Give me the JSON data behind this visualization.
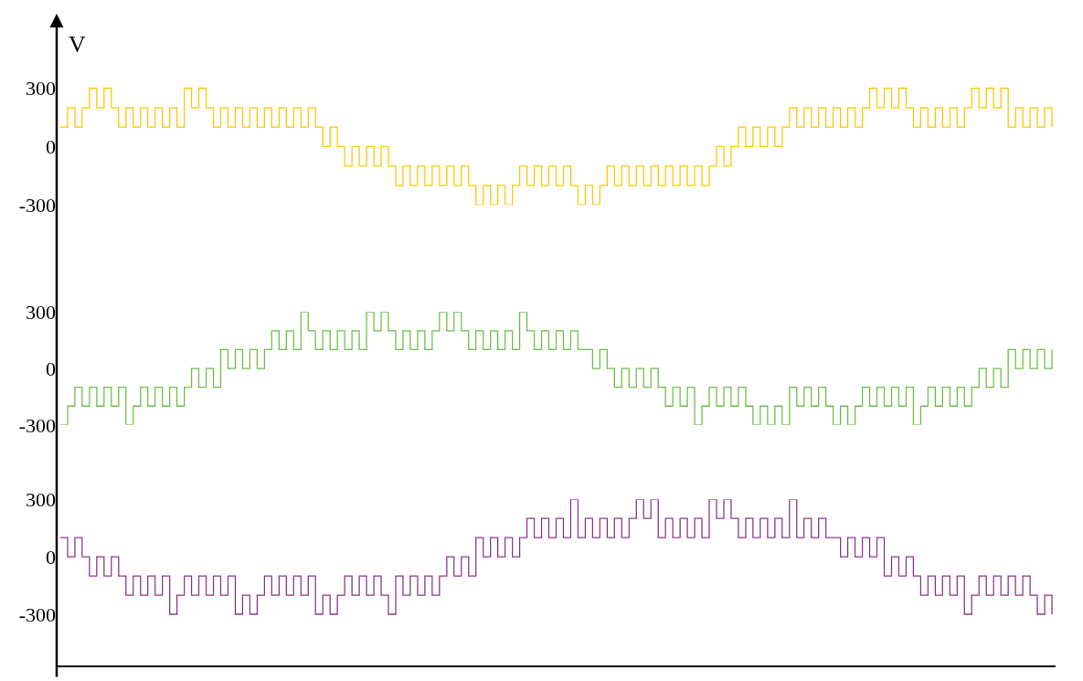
{
  "chart_data": [
    {
      "type": "step",
      "ylabel": "V",
      "color": "#ffc800",
      "ylim": [
        -300,
        683
      ],
      "yticks": [
        -300,
        0,
        300
      ],
      "tick_labels": "y",
      "categories": [
        null,
        null,
        null,
        null,
        null,
        null,
        null,
        null,
        null,
        null,
        null,
        null,
        null,
        null,
        null,
        null,
        null,
        null,
        null,
        null,
        null,
        null,
        null,
        null,
        null,
        null,
        null,
        null,
        null,
        null,
        null,
        null,
        null,
        null,
        null,
        null,
        null,
        null,
        null,
        null,
        null,
        null,
        null,
        null,
        null,
        null,
        null,
        null,
        null,
        null,
        null,
        null,
        null,
        null,
        null,
        null,
        null,
        null,
        null,
        null,
        null,
        null,
        null,
        null,
        null,
        null,
        null,
        null,
        null,
        null,
        null,
        null,
        null,
        null,
        null,
        null,
        null,
        null,
        null,
        null,
        null,
        null,
        null,
        null,
        null,
        null,
        null,
        null,
        null,
        null,
        null,
        null,
        null,
        null,
        null,
        null,
        null,
        null,
        null,
        null,
        null,
        null,
        null,
        null,
        null,
        null,
        null,
        null,
        null,
        null,
        null,
        null,
        null,
        null,
        null,
        null,
        null,
        null,
        null,
        null,
        null,
        null,
        null,
        null,
        null,
        null,
        null,
        null,
        null,
        null,
        null,
        null,
        null,
        null,
        null,
        null,
        null
      ],
      "values": [
        100,
        200,
        100,
        200,
        300,
        200,
        300,
        200,
        100,
        200,
        100,
        200,
        100,
        200,
        100,
        200,
        100,
        300,
        200,
        300,
        200,
        100,
        200,
        100,
        200,
        100,
        200,
        100,
        200,
        100,
        200,
        100,
        200,
        100,
        200,
        100,
        0,
        100,
        0,
        -100,
        0,
        -100,
        0,
        -100,
        0,
        -100,
        -200,
        -100,
        -200,
        -100,
        -200,
        -100,
        -200,
        -100,
        -200,
        -100,
        -200,
        -300,
        -200,
        -300,
        -200,
        -300,
        -200,
        -100,
        -200,
        -100,
        -200,
        -100,
        -200,
        -100,
        -200,
        -300,
        -200,
        -300,
        -200,
        -100,
        -200,
        -100,
        -200,
        -100,
        -200,
        -100,
        -200,
        -100,
        -200,
        -100,
        -200,
        -100,
        -200,
        -100,
        0,
        -100,
        0,
        100,
        0,
        100,
        0,
        100,
        0,
        100,
        200,
        100,
        200,
        100,
        200,
        100,
        200,
        100,
        200,
        100,
        200,
        300,
        200,
        300,
        200,
        300,
        200,
        100,
        200,
        100,
        200,
        100,
        200,
        100,
        200,
        300,
        200,
        300,
        200,
        300,
        100,
        200,
        100,
        200,
        100,
        200,
        100
      ]
    },
    {
      "type": "step",
      "color": "#6cc04a",
      "ylim": [
        -300,
        300
      ],
      "yticks": [
        -300,
        0,
        300
      ],
      "tick_labels": "y",
      "categories": [
        null,
        null,
        null,
        null,
        null,
        null,
        null,
        null,
        null,
        null,
        null,
        null,
        null,
        null,
        null,
        null,
        null,
        null,
        null,
        null,
        null,
        null,
        null,
        null,
        null,
        null,
        null,
        null,
        null,
        null,
        null,
        null,
        null,
        null,
        null,
        null,
        null,
        null,
        null,
        null,
        null,
        null,
        null,
        null,
        null,
        null,
        null,
        null,
        null,
        null,
        null,
        null,
        null,
        null,
        null,
        null,
        null,
        null,
        null,
        null,
        null,
        null,
        null,
        null,
        null,
        null,
        null,
        null,
        null,
        null,
        null,
        null,
        null,
        null,
        null,
        null,
        null,
        null,
        null,
        null,
        null,
        null,
        null,
        null,
        null,
        null,
        null,
        null,
        null,
        null,
        null,
        null,
        null,
        null,
        null,
        null,
        null,
        null,
        null,
        null,
        null,
        null,
        null,
        null,
        null,
        null,
        null,
        null,
        null,
        null,
        null,
        null,
        null,
        null,
        null,
        null,
        null,
        null,
        null,
        null,
        null,
        null,
        null,
        null,
        null,
        null,
        null,
        null,
        null,
        null,
        null,
        null,
        null,
        null,
        null,
        null,
        null
      ],
      "values": [
        -300,
        -200,
        -100,
        -200,
        -100,
        -200,
        -100,
        -200,
        -100,
        -300,
        -200,
        -100,
        -200,
        -100,
        -200,
        -100,
        -200,
        -100,
        0,
        -100,
        0,
        -100,
        100,
        0,
        100,
        0,
        100,
        0,
        100,
        200,
        100,
        200,
        100,
        300,
        200,
        100,
        200,
        100,
        200,
        100,
        200,
        100,
        300,
        200,
        300,
        200,
        100,
        200,
        100,
        200,
        100,
        200,
        300,
        200,
        300,
        200,
        100,
        200,
        100,
        200,
        100,
        200,
        100,
        300,
        200,
        100,
        200,
        100,
        200,
        100,
        200,
        100,
        100,
        0,
        100,
        0,
        -100,
        0,
        -100,
        0,
        -100,
        0,
        -100,
        -200,
        -100,
        -200,
        -100,
        -300,
        -200,
        -100,
        -200,
        -100,
        -200,
        -100,
        -200,
        -300,
        -200,
        -300,
        -200,
        -300,
        -100,
        -200,
        -100,
        -200,
        -100,
        -200,
        -300,
        -200,
        -300,
        -200,
        -100,
        -200,
        -100,
        -200,
        -100,
        -200,
        -100,
        -300,
        -200,
        -100,
        -200,
        -100,
        -200,
        -100,
        -200,
        -100,
        0,
        -100,
        0,
        -100,
        100,
        0,
        100,
        0,
        100,
        0,
        100
      ]
    },
    {
      "type": "step",
      "color": "#8b3a8b",
      "ylim": [
        -572,
        300
      ],
      "yticks": [
        -300,
        0,
        300
      ],
      "tick_labels": "y",
      "categories": [
        null,
        null,
        null,
        null,
        null,
        null,
        null,
        null,
        null,
        null,
        null,
        null,
        null,
        null,
        null,
        null,
        null,
        null,
        null,
        null,
        null,
        null,
        null,
        null,
        null,
        null,
        null,
        null,
        null,
        null,
        null,
        null,
        null,
        null,
        null,
        null,
        null,
        null,
        null,
        null,
        null,
        null,
        null,
        null,
        null,
        null,
        null,
        null,
        null,
        null,
        null,
        null,
        null,
        null,
        null,
        null,
        null,
        null,
        null,
        null,
        null,
        null,
        null,
        null,
        null,
        null,
        null,
        null,
        null,
        null,
        null,
        null,
        null,
        null,
        null,
        null,
        null,
        null,
        null,
        null,
        null,
        null,
        null,
        null,
        null,
        null,
        null,
        null,
        null,
        null,
        null,
        null,
        null,
        null,
        null,
        null,
        null,
        null,
        null,
        null,
        null,
        null,
        null,
        null,
        null,
        null,
        null,
        null,
        null,
        null,
        null,
        null,
        null,
        null,
        null,
        null,
        null,
        null,
        null,
        null,
        null,
        null,
        null,
        null,
        null,
        null,
        null,
        null,
        null,
        null,
        null,
        null,
        null,
        null,
        null,
        null,
        null
      ],
      "values": [
        100,
        0,
        100,
        0,
        -100,
        0,
        -100,
        0,
        -100,
        -200,
        -100,
        -200,
        -100,
        -200,
        -100,
        -300,
        -200,
        -100,
        -200,
        -100,
        -200,
        -100,
        -200,
        -100,
        -300,
        -200,
        -300,
        -200,
        -100,
        -200,
        -100,
        -200,
        -100,
        -200,
        -100,
        -300,
        -200,
        -300,
        -200,
        -100,
        -200,
        -100,
        -200,
        -100,
        -200,
        -300,
        -100,
        -200,
        -100,
        -200,
        -100,
        -200,
        -100,
        0,
        -100,
        0,
        -100,
        100,
        0,
        100,
        0,
        100,
        0,
        100,
        200,
        100,
        200,
        100,
        200,
        100,
        300,
        100,
        200,
        100,
        200,
        100,
        200,
        100,
        200,
        300,
        200,
        300,
        100,
        200,
        100,
        200,
        100,
        200,
        100,
        300,
        200,
        300,
        200,
        100,
        200,
        100,
        200,
        100,
        200,
        100,
        300,
        100,
        200,
        100,
        200,
        100,
        100,
        0,
        100,
        0,
        100,
        0,
        100,
        -100,
        0,
        -100,
        0,
        -100,
        -200,
        -100,
        -200,
        -100,
        -200,
        -100,
        -300,
        -200,
        -100,
        -200,
        -100,
        -200,
        -100,
        -200,
        -100,
        -200,
        -300,
        -200,
        -300
      ]
    }
  ]
}
